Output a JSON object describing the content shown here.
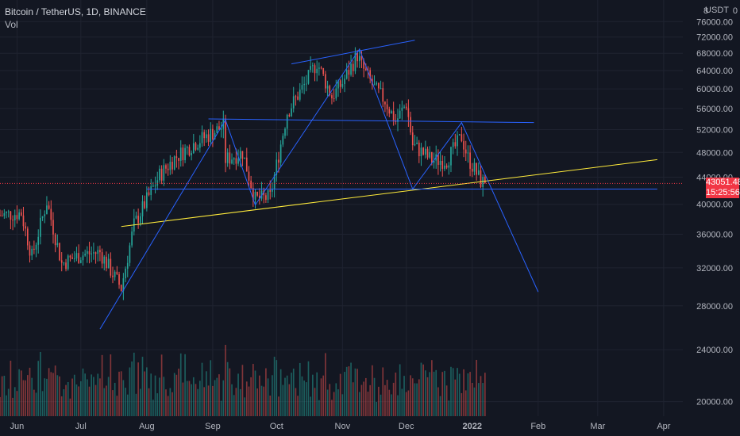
{
  "header": {
    "symbol_title": "Bitcoin / TetherUS, 1D, BINANCE",
    "volume_label": "Vol",
    "currency_unit": "USDT",
    "scale_mode_glyph": "8",
    "settings_glyph": "0"
  },
  "price_labels": {
    "last_price": "43051.48",
    "countdown": "15:25:56"
  },
  "colors": {
    "background": "#131722",
    "up": "#26a69a",
    "down": "#ef5350",
    "drawing_blue": "#2962ff",
    "trendline_yellow": "#ffeb3b",
    "last_price_tag": "#f23645",
    "axis_text": "#b2b5be"
  },
  "chart_data": {
    "type": "candlestick",
    "symbol": "BTCUSDT",
    "interval": "1D",
    "exchange": "BINANCE",
    "y_axis": {
      "scale": "log",
      "ticks": [
        "76000.00",
        "72000.00",
        "68000.00",
        "64000.00",
        "60000.00",
        "56000.00",
        "52000.00",
        "48000.00",
        "44000.00",
        "40000.00",
        "36000.00",
        "32000.00",
        "28000.00",
        "24000.00",
        "20000.00"
      ],
      "range": [
        19000,
        82000
      ]
    },
    "x_axis": {
      "ticks": [
        {
          "label": "Jun",
          "date": "2021-06-01"
        },
        {
          "label": "Jul",
          "date": "2021-07-01"
        },
        {
          "label": "Aug",
          "date": "2021-08-01"
        },
        {
          "label": "Sep",
          "date": "2021-09-01"
        },
        {
          "label": "Oct",
          "date": "2021-10-01"
        },
        {
          "label": "Nov",
          "date": "2021-11-01"
        },
        {
          "label": "Dec",
          "date": "2021-12-01"
        },
        {
          "label": "2022",
          "date": "2022-01-01"
        },
        {
          "label": "Feb",
          "date": "2022-02-01"
        },
        {
          "label": "Mar",
          "date": "2022-03-01"
        },
        {
          "label": "Apr",
          "date": "2022-04-01"
        }
      ],
      "range": [
        "2021-05-24",
        "2022-04-10"
      ]
    },
    "close_anchors": [
      {
        "date": "2021-05-24",
        "close": 38500
      },
      {
        "date": "2021-06-03",
        "close": 38800
      },
      {
        "date": "2021-06-08",
        "close": 33300
      },
      {
        "date": "2021-06-15",
        "close": 40400
      },
      {
        "date": "2021-06-22",
        "close": 32500
      },
      {
        "date": "2021-07-01",
        "close": 33500
      },
      {
        "date": "2021-07-10",
        "close": 33800
      },
      {
        "date": "2021-07-20",
        "close": 29800
      },
      {
        "date": "2021-07-26",
        "close": 37200
      },
      {
        "date": "2021-08-07",
        "close": 44300
      },
      {
        "date": "2021-08-14",
        "close": 47000
      },
      {
        "date": "2021-08-23",
        "close": 49500
      },
      {
        "date": "2021-09-06",
        "close": 52600
      },
      {
        "date": "2021-09-07",
        "close": 46800
      },
      {
        "date": "2021-09-15",
        "close": 48000
      },
      {
        "date": "2021-09-21",
        "close": 40700
      },
      {
        "date": "2021-09-28",
        "close": 41000
      },
      {
        "date": "2021-10-06",
        "close": 55300
      },
      {
        "date": "2021-10-15",
        "close": 61500
      },
      {
        "date": "2021-10-20",
        "close": 65900
      },
      {
        "date": "2021-10-27",
        "close": 58400
      },
      {
        "date": "2021-11-01",
        "close": 61300
      },
      {
        "date": "2021-11-08",
        "close": 67600
      },
      {
        "date": "2021-11-10",
        "close": 65000
      },
      {
        "date": "2021-11-16",
        "close": 60100
      },
      {
        "date": "2021-11-21",
        "close": 57600
      },
      {
        "date": "2021-11-26",
        "close": 53500
      },
      {
        "date": "2021-12-01",
        "close": 57000
      },
      {
        "date": "2021-12-04",
        "close": 49300
      },
      {
        "date": "2021-12-13",
        "close": 46700
      },
      {
        "date": "2021-12-20",
        "close": 46700
      },
      {
        "date": "2021-12-27",
        "close": 50700
      },
      {
        "date": "2021-12-30",
        "close": 47100
      },
      {
        "date": "2022-01-05",
        "close": 43400
      },
      {
        "date": "2022-01-07",
        "close": 43051.48
      }
    ],
    "drawings": [
      {
        "name": "ascending-support-line",
        "color": "yellow",
        "from": {
          "date": "2021-07-20",
          "price": 37000
        },
        "to": {
          "date": "2022-03-29",
          "price": 46800
        }
      },
      {
        "name": "neckline-top",
        "color": "blue",
        "from": {
          "date": "2021-08-30",
          "price": 54000
        },
        "to": {
          "date": "2022-01-30",
          "price": 53300
        }
      },
      {
        "name": "neckline-bottom",
        "color": "blue",
        "from": {
          "date": "2021-08-01",
          "price": 42200
        },
        "to": {
          "date": "2022-03-29",
          "price": 42200
        }
      },
      {
        "name": "upper-trend-line",
        "color": "blue",
        "from": {
          "date": "2021-10-08",
          "price": 65500
        },
        "to": {
          "date": "2021-12-05",
          "price": 71200
        }
      },
      {
        "name": "pattern-zigzag",
        "color": "blue",
        "points": [
          {
            "date": "2021-07-10",
            "price": 25800
          },
          {
            "date": "2021-09-07",
            "price": 53800
          },
          {
            "date": "2021-09-21",
            "price": 39900
          },
          {
            "date": "2021-11-09",
            "price": 69000
          },
          {
            "date": "2021-12-04",
            "price": 42200
          },
          {
            "date": "2021-12-27",
            "price": 53300
          },
          {
            "date": "2022-02-01",
            "price": 29400
          }
        ]
      }
    ]
  }
}
